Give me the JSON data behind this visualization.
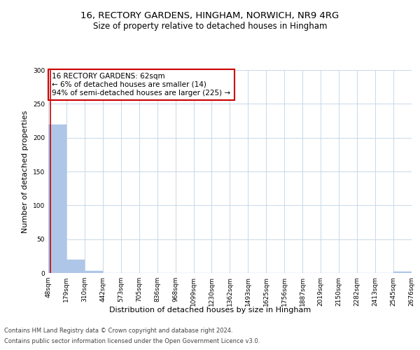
{
  "title_line1": "16, RECTORY GARDENS, HINGHAM, NORWICH, NR9 4RG",
  "title_line2": "Size of property relative to detached houses in Hingham",
  "xlabel": "Distribution of detached houses by size in Hingham",
  "ylabel": "Number of detached properties",
  "footer1": "Contains HM Land Registry data © Crown copyright and database right 2024.",
  "footer2": "Contains public sector information licensed under the Open Government Licence v3.0.",
  "bin_labels": [
    "48sqm",
    "179sqm",
    "310sqm",
    "442sqm",
    "573sqm",
    "705sqm",
    "836sqm",
    "968sqm",
    "1099sqm",
    "1230sqm",
    "1362sqm",
    "1493sqm",
    "1625sqm",
    "1756sqm",
    "1887sqm",
    "2019sqm",
    "2150sqm",
    "2282sqm",
    "2413sqm",
    "2545sqm",
    "2676sqm"
  ],
  "bar_heights": [
    219,
    20,
    3,
    0,
    0,
    0,
    0,
    0,
    0,
    0,
    0,
    0,
    0,
    0,
    0,
    0,
    0,
    0,
    0,
    2,
    0
  ],
  "bar_color": "#aec6e8",
  "bar_edge_color": "#aec6e8",
  "grid_color": "#c8d8e8",
  "annotation_text": "16 RECTORY GARDENS: 62sqm\n← 6% of detached houses are smaller (14)\n94% of semi-detached houses are larger (225) →",
  "annotation_box_color": "#ffffff",
  "annotation_box_edge": "#cc0000",
  "vline_x": 62,
  "vline_color": "#cc0000",
  "ylim": [
    0,
    300
  ],
  "yticks": [
    0,
    50,
    100,
    150,
    200,
    250,
    300
  ],
  "bin_edges": [
    48,
    179,
    310,
    442,
    573,
    705,
    836,
    968,
    1099,
    1230,
    1362,
    1493,
    1625,
    1756,
    1887,
    2019,
    2150,
    2282,
    2413,
    2545,
    2676
  ],
  "property_size_sqm": 62,
  "bg_color": "#ffffff",
  "title_fontsize": 9.5,
  "subtitle_fontsize": 8.5,
  "axis_label_fontsize": 8,
  "tick_fontsize": 6.5,
  "annotation_fontsize": 7.5,
  "footer_fontsize": 6
}
